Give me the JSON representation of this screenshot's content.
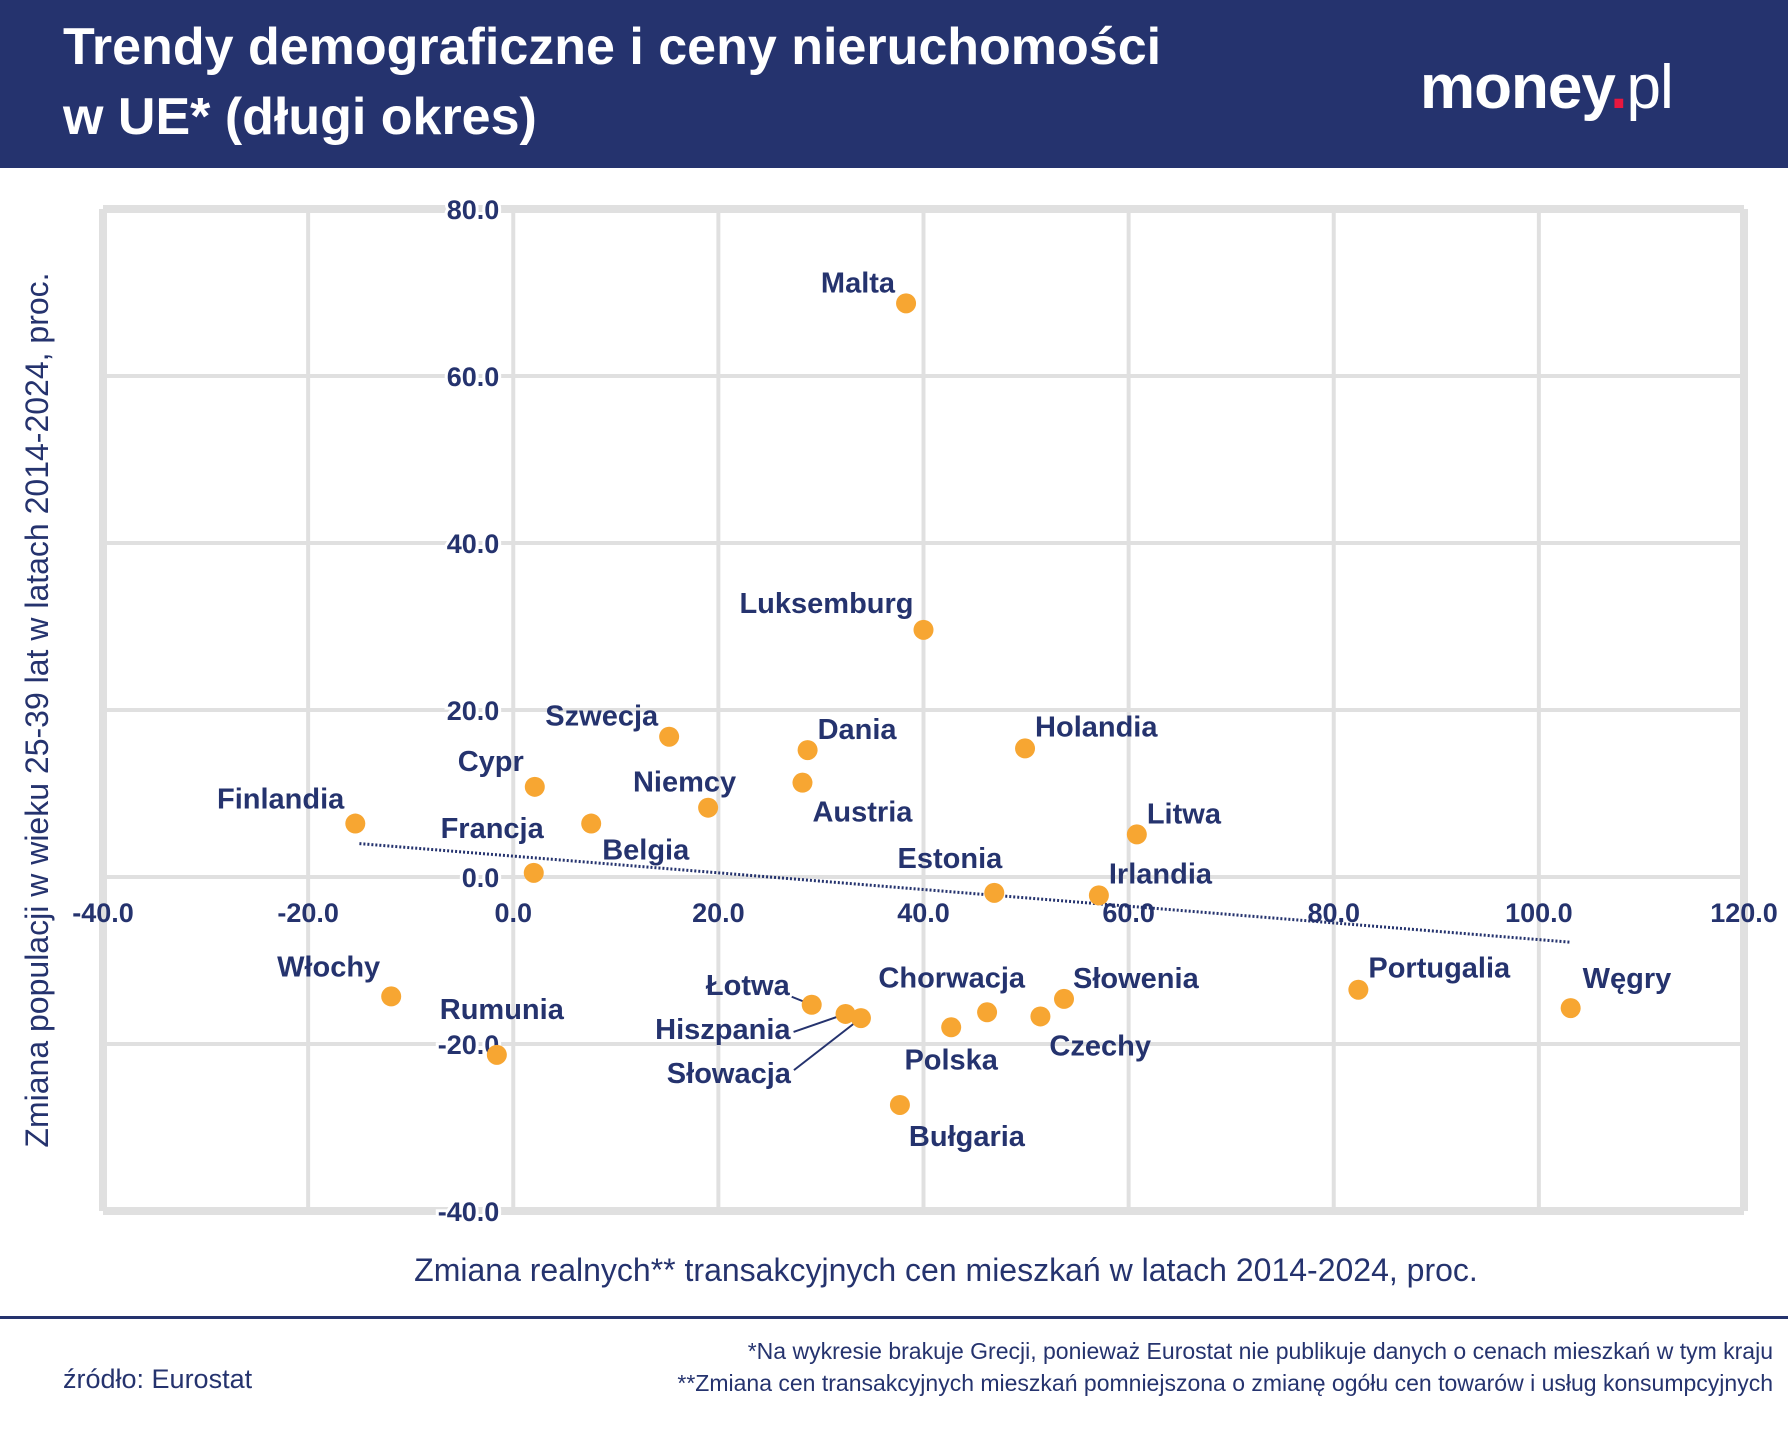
{
  "header": {
    "title_line1": "Trendy demograficzne i ceny nieruchomości",
    "title_line2": "w UE* (długi okres)",
    "logo": "money.pl"
  },
  "footer": {
    "source": "źródło: Eurostat",
    "note1": "*Na wykresie brakuje Grecji, ponieważ Eurostat nie publikuje danych o cenach mieszkań w tym kraju",
    "note2": "**Zmiana cen transakcyjnych mieszkań pomniejszona o zmianę ogółu cen towarów i usług konsumpcyjnych"
  },
  "colors": {
    "brand": "#25336e",
    "points": "#f7a632",
    "grid": "#e0e0e0",
    "logo_dot": "#e8173f"
  },
  "chart_data": {
    "type": "scatter",
    "xlabel": "Zmiana realnych** transakcyjnych cen mieszkań w latach 2014-2024, proc.",
    "ylabel": "Zmiana populacji w wieku 25-39 lat w latach 2014-2024, proc.",
    "xlim": [
      -40,
      120
    ],
    "ylim": [
      -40,
      80
    ],
    "xticks": [
      "-40.0",
      "-20.0",
      "0.0",
      "20.0",
      "40.0",
      "60.0",
      "80.0",
      "100.0",
      "120.0"
    ],
    "yticks": [
      "-40.0",
      "-20.0",
      "0.0",
      "20.0",
      "40.0",
      "60.0",
      "80.0"
    ],
    "grid": true,
    "trendline": {
      "x": [
        -15,
        103
      ],
      "y": [
        4.0,
        -7.8
      ]
    },
    "points": [
      {
        "label": "Malta",
        "x": 38.3,
        "y": 68.7
      },
      {
        "label": "Luksemburg",
        "x": 40.0,
        "y": 29.6
      },
      {
        "label": "Szwecja",
        "x": 15.2,
        "y": 16.8
      },
      {
        "label": "Dania",
        "x": 28.7,
        "y": 15.2
      },
      {
        "label": "Holandia",
        "x": 49.9,
        "y": 15.4
      },
      {
        "label": "Cypr",
        "x": 2.1,
        "y": 10.8
      },
      {
        "label": "Niemcy",
        "x": 19.0,
        "y": 8.3
      },
      {
        "label": "Austria",
        "x": 28.2,
        "y": 11.3
      },
      {
        "label": "Finlandia",
        "x": -15.4,
        "y": 6.4
      },
      {
        "label": "Francja",
        "x": 2.0,
        "y": 0.5
      },
      {
        "label": "Belgia",
        "x": 7.6,
        "y": 6.4
      },
      {
        "label": "Litwa",
        "x": 60.8,
        "y": 5.1
      },
      {
        "label": "Estonia",
        "x": 46.9,
        "y": -1.9
      },
      {
        "label": "Irlandia",
        "x": 57.1,
        "y": -2.2
      },
      {
        "label": "Portugalia",
        "x": 82.4,
        "y": -13.5
      },
      {
        "label": "Węgry",
        "x": 103.1,
        "y": -15.7
      },
      {
        "label": "Włochy",
        "x": -11.9,
        "y": -14.3
      },
      {
        "label": "Rumunia",
        "x": -1.6,
        "y": -21.3
      },
      {
        "label": "Łotwa",
        "x": 29.1,
        "y": -15.3
      },
      {
        "label": "Hiszpania",
        "x": 32.4,
        "y": -16.4
      },
      {
        "label": "Słowacja",
        "x": 33.9,
        "y": -16.9
      },
      {
        "label": "Chorwacja",
        "x": 46.2,
        "y": -16.2
      },
      {
        "label": "Słowenia",
        "x": 53.7,
        "y": -14.6
      },
      {
        "label": "Czechy",
        "x": 51.4,
        "y": -16.7
      },
      {
        "label": "Polska",
        "x": 42.7,
        "y": -18.0
      },
      {
        "label": "Bułgaria",
        "x": 37.7,
        "y": -27.3
      }
    ]
  }
}
